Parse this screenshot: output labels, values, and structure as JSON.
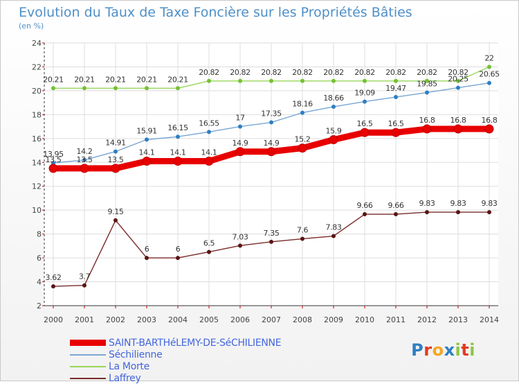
{
  "header": {
    "title": "Evolution du Taux de Taxe Foncière sur les Propriétés Bâties",
    "unit": "(en %)"
  },
  "logo": {
    "letters": [
      "P",
      "r",
      "o",
      "x",
      "i",
      "t",
      "i"
    ],
    "colors": [
      "#2e7fc2",
      "#e23b1f",
      "#f5a623",
      "#2e7fc2",
      "#8cc63f",
      "#e23b1f",
      "#8cc63f"
    ]
  },
  "chart_data": {
    "type": "line",
    "title": "Evolution du Taux de Taxe Foncière sur les Propriétés Bâties",
    "xlabel": "",
    "ylabel": "(en %)",
    "x": [
      "2000",
      "2001",
      "2002",
      "2003",
      "2004",
      "2005",
      "2006",
      "2007",
      "2008",
      "2009",
      "2010",
      "2011",
      "2012",
      "2013",
      "2014"
    ],
    "ylim": [
      2,
      24
    ],
    "yticks": [
      "2",
      "4",
      "6",
      "8",
      "10",
      "12",
      "14",
      "16",
      "18",
      "20",
      "22",
      "24"
    ],
    "grid": true,
    "legend_position": "bottom-left",
    "series": [
      {
        "name": "SAINT-BARTHéLEMY-DE-SéCHILIENNE",
        "color": "#e80000",
        "marker_color": "#e80000",
        "thick": true,
        "values": [
          13.5,
          13.5,
          13.5,
          14.1,
          14.1,
          14.1,
          14.9,
          14.9,
          15.2,
          15.9,
          16.5,
          16.5,
          16.8,
          16.8,
          16.8
        ],
        "labels": [
          "13.5",
          "13.5",
          "13.5",
          "14.1",
          "14.1",
          "14.1",
          "14.9",
          "14.9",
          "15.2",
          "15.9",
          "16.5",
          "16.5",
          "16.8",
          "16.8",
          "16.8"
        ]
      },
      {
        "name": "Séchilienne",
        "color": "#78a6d2",
        "marker_color": "#2e7fc2",
        "thick": false,
        "values": [
          13.95,
          14.2,
          14.91,
          15.91,
          16.15,
          16.55,
          17,
          17.35,
          18.16,
          18.66,
          19.09,
          19.47,
          19.85,
          20.25,
          20.65
        ],
        "labels": [
          "13.95",
          "14.2",
          "14.91",
          "15.91",
          "16.15",
          "16.55",
          "17",
          "17.35",
          "18.16",
          "18.66",
          "19.09",
          "19.47",
          "19.85",
          "20.25",
          "20.65"
        ]
      },
      {
        "name": "La Morte",
        "color": "#98d65a",
        "marker_color": "#74c032",
        "thick": false,
        "values": [
          20.21,
          20.21,
          20.21,
          20.21,
          20.21,
          20.82,
          20.82,
          20.82,
          20.82,
          20.82,
          20.82,
          20.82,
          20.82,
          20.82,
          22
        ],
        "labels": [
          "20.21",
          "20.21",
          "20.21",
          "20.21",
          "20.21",
          "20.82",
          "20.82",
          "20.82",
          "20.82",
          "20.82",
          "20.82",
          "20.82",
          "20.82",
          "20.82",
          "22"
        ]
      },
      {
        "name": "Laffrey",
        "color": "#7a2a2a",
        "marker_color": "#5a1414",
        "thick": false,
        "values": [
          3.62,
          3.7,
          9.15,
          6,
          6,
          6.5,
          7.03,
          7.35,
          7.6,
          7.83,
          9.66,
          9.66,
          9.83,
          9.83,
          9.83
        ],
        "labels": [
          "3.62",
          "3.7",
          "9.15",
          "6",
          "6",
          "6.5",
          "7.03",
          "7.35",
          "7.6",
          "7.83",
          "9.66",
          "9.66",
          "9.83",
          "9.83",
          "9.83"
        ]
      }
    ]
  }
}
